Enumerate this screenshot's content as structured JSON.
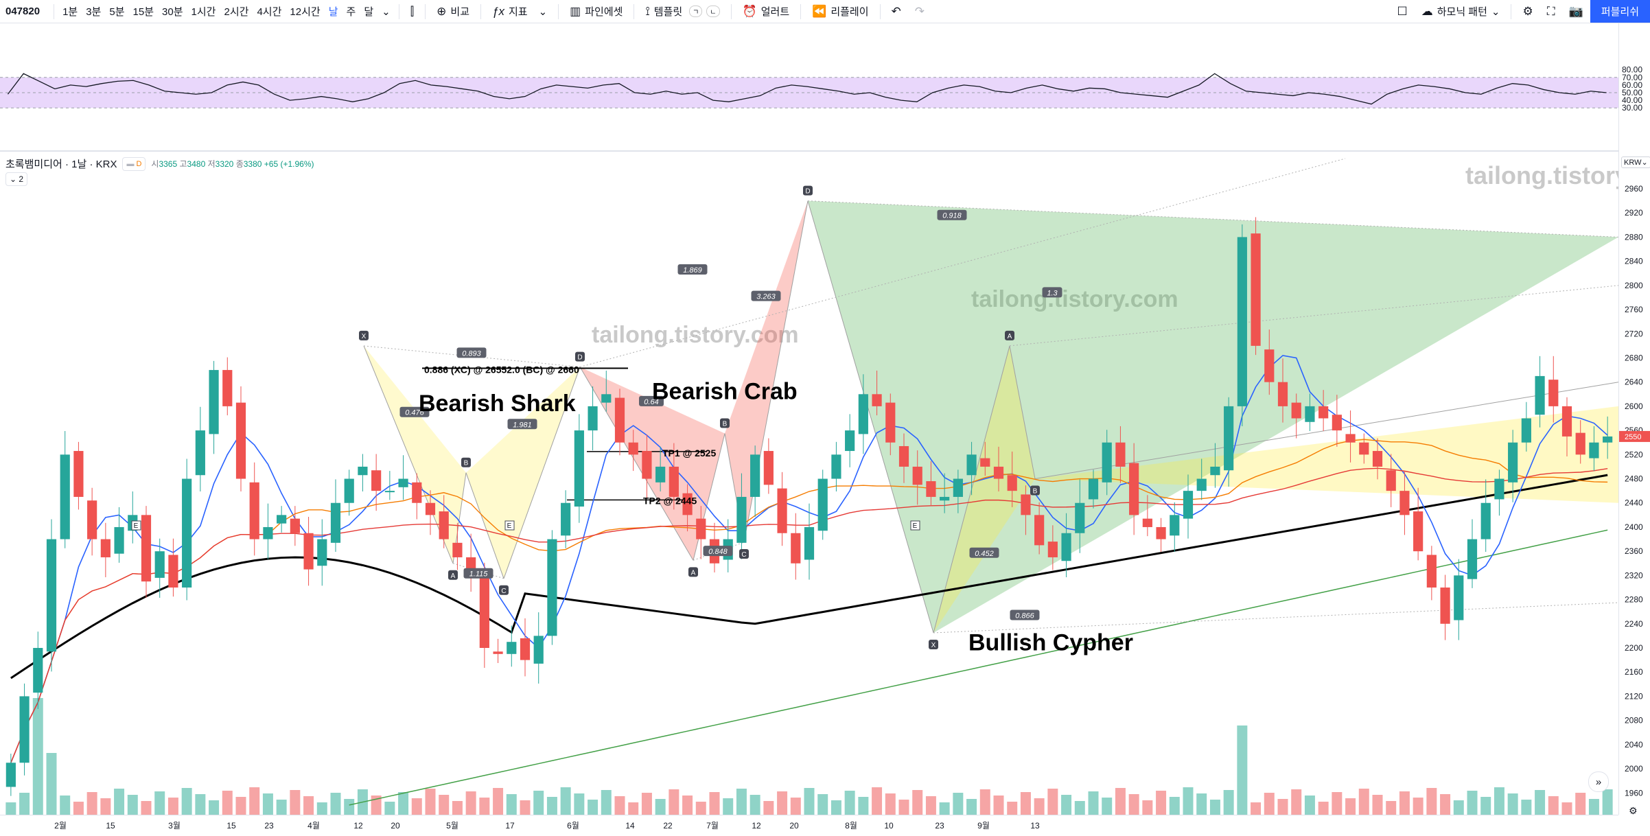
{
  "toolbar": {
    "symbol": "047820",
    "intervals": [
      "1분",
      "3분",
      "5분",
      "15분",
      "30분",
      "1시간",
      "2시간",
      "4시간",
      "12시간",
      "날",
      "주",
      "달"
    ],
    "active_interval": "날",
    "compare_label": "비교",
    "indicators_label": "지표",
    "pine_label": "파인에셋",
    "templates_label": "템플릿",
    "alert_label": "얼러트",
    "replay_label": "리플레이",
    "harmonic_label": "하모닉 패턴",
    "publish_label": "퍼블리쉬"
  },
  "legend": {
    "title": "초록뱀미디어 · 1날 · KRX",
    "badge": "D",
    "o_label": "시",
    "o": "3365",
    "h_label": "고",
    "h": "3480",
    "l_label": "저",
    "l": "3320",
    "c_label": "종",
    "c": "3380",
    "change": "+65 (+1.96%)",
    "collapse": "2"
  },
  "currency": "KRW",
  "current_price_label": "2550",
  "watermark": "tailong.tistory.com",
  "colors": {
    "up": "#26a69a",
    "down": "#ef5350",
    "rsi": "#131722",
    "rsi_band": "#e9d7fb",
    "ma_blue": "#2962ff",
    "ma_orange": "#f57c00",
    "ma_red": "#e53935",
    "ma_black": "#000000",
    "ma_green": "#43a047"
  },
  "chart_data": {
    "type": "candlestick",
    "price_axis": {
      "min": 1940,
      "max": 2980,
      "ticks": [
        1960,
        2000,
        2040,
        2080,
        2120,
        2160,
        2200,
        2240,
        2280,
        2320,
        2360,
        2400,
        2440,
        2480,
        2520,
        2560,
        2600,
        2640,
        2680,
        2720,
        2760,
        2800,
        2840,
        2880,
        2920,
        2960
      ]
    },
    "rsi_axis": {
      "ticks": [
        "30.00",
        "40.00",
        "50.00",
        "60.00",
        "70.00",
        "80.00"
      ],
      "band": [
        30,
        70
      ]
    },
    "time_labels": [
      "2월",
      "15",
      "3월",
      "15",
      "23",
      "4월",
      "12",
      "20",
      "5월",
      "17",
      "6월",
      "14",
      "22",
      "7월",
      "12",
      "20",
      "8월",
      "10",
      "23",
      "9월",
      "13"
    ],
    "earnings_marks": [
      "E",
      "E",
      "E"
    ],
    "patterns": [
      {
        "name": "Bearish Shark",
        "points": {
          "X": 2700,
          "A": 2340,
          "B": 2490,
          "C": 2315,
          "D": 2665
        },
        "ratios": [
          "0.893",
          "0.476",
          "1.981",
          "1.115"
        ]
      },
      {
        "name": "Bearish Crab",
        "points": {
          "D": 2665,
          "A": 2345,
          "B": 2555,
          "C": 2375,
          "D2": 2940
        },
        "ratios": [
          "0.64",
          "0.848",
          "3.263",
          "1.869"
        ]
      },
      {
        "name": "Bullish Cypher",
        "points": {
          "D": 2940,
          "X": 2225,
          "A": 2700,
          "B": 2480
        },
        "ratios": [
          "0.918",
          "0.452",
          "0.866",
          "1.3"
        ]
      }
    ],
    "annotations": [
      "0.886 (XC) @ 26552.0 (BC) @ 2660",
      "TP1 @ 2525",
      "TP2 @ 2445"
    ],
    "pattern_labels": {
      "shark": [
        "X",
        "A",
        "B",
        "C",
        "D"
      ],
      "crab": [
        "A",
        "B",
        "C",
        "D"
      ],
      "cypher": [
        "X",
        "A",
        "B"
      ]
    },
    "closes": [
      2010,
      2120,
      2200,
      2380,
      2520,
      2450,
      2380,
      2350,
      2400,
      2420,
      2310,
      2360,
      2300,
      2480,
      2560,
      2660,
      2600,
      2480,
      2380,
      2400,
      2420,
      2390,
      2330,
      2380,
      2440,
      2480,
      2500,
      2460,
      2460,
      2480,
      2440,
      2420,
      2380,
      2350,
      2320,
      2200,
      2190,
      2210,
      2180,
      2220,
      2380,
      2440,
      2560,
      2600,
      2620,
      2540,
      2520,
      2480,
      2500,
      2450,
      2420,
      2380,
      2340,
      2380,
      2450,
      2520,
      2470,
      2390,
      2340,
      2400,
      2480,
      2520,
      2560,
      2620,
      2600,
      2540,
      2500,
      2470,
      2450,
      2450,
      2480,
      2520,
      2500,
      2480,
      2460,
      2420,
      2370,
      2350,
      2390,
      2440,
      2480,
      2540,
      2500,
      2420,
      2400,
      2380,
      2420,
      2460,
      2480,
      2500,
      2600,
      2880,
      2700,
      2640,
      2600,
      2580,
      2600,
      2580,
      2560,
      2540,
      2520,
      2500,
      2460,
      2420,
      2360,
      2300,
      2240,
      2320,
      2380,
      2440,
      2480,
      2540,
      2580,
      2650,
      2600,
      2550,
      2520,
      2540,
      2550
    ],
    "rsi": [
      48,
      75,
      65,
      55,
      60,
      58,
      62,
      65,
      66,
      60,
      52,
      50,
      48,
      50,
      60,
      64,
      60,
      48,
      40,
      42,
      45,
      42,
      38,
      42,
      50,
      62,
      66,
      60,
      58,
      55,
      52,
      45,
      42,
      45,
      55,
      60,
      58,
      56,
      60,
      62,
      50,
      48,
      52,
      48,
      50,
      40,
      38,
      42,
      46,
      56,
      60,
      58,
      55,
      52,
      48,
      50,
      44,
      40,
      38,
      50,
      56,
      60,
      58,
      52,
      50,
      56,
      60,
      55,
      52,
      56,
      55,
      50,
      48,
      46,
      44,
      52,
      60,
      75,
      62,
      52,
      50,
      48,
      46,
      50,
      48,
      45,
      40,
      35,
      48,
      55,
      60,
      58,
      55,
      50,
      48,
      56,
      62,
      60,
      54,
      50,
      48,
      52,
      50
    ]
  }
}
